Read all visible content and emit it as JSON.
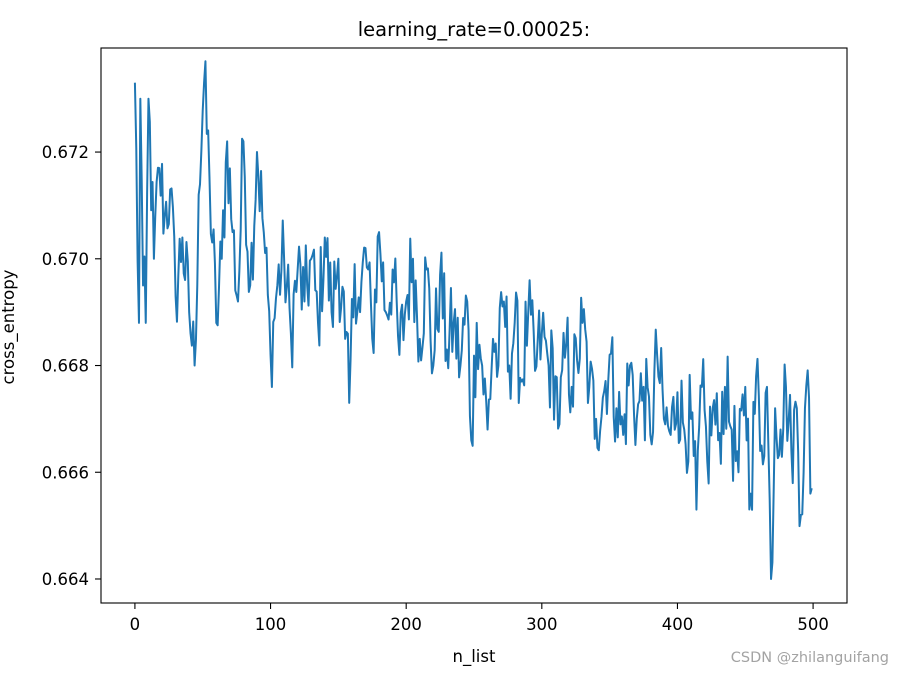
{
  "watermark": "CSDN @zhilanguifang",
  "chart_data": {
    "type": "line",
    "title": "learning_rate=0.00025:",
    "xlabel": "n_list",
    "ylabel": "cross_entropy",
    "xlim": [
      -25,
      525
    ],
    "ylim": [
      0.66355,
      0.67395
    ],
    "xticks": [
      0,
      100,
      200,
      300,
      400,
      500
    ],
    "yticks": [
      0.664,
      0.666,
      0.668,
      0.67,
      0.672
    ],
    "xtick_labels": [
      "0",
      "100",
      "200",
      "300",
      "400",
      "500"
    ],
    "ytick_labels": [
      "0.664",
      "0.666",
      "0.668",
      "0.670",
      "0.672"
    ],
    "grid": false,
    "series": [
      {
        "color": "#1f77b4",
        "x_start": 0,
        "x_step": 1,
        "anchors": [
          [
            0,
            0.6733
          ],
          [
            3,
            0.6688
          ],
          [
            4,
            0.673
          ],
          [
            6,
            0.6695
          ],
          [
            8,
            0.6688
          ],
          [
            10,
            0.673
          ],
          [
            14,
            0.67
          ],
          [
            18,
            0.6717
          ],
          [
            22,
            0.6708
          ],
          [
            26,
            0.6713
          ],
          [
            30,
            0.6693
          ],
          [
            35,
            0.6704
          ],
          [
            40,
            0.669
          ],
          [
            44,
            0.668
          ],
          [
            47,
            0.6712
          ],
          [
            51,
            0.6733
          ],
          [
            55,
            0.6715
          ],
          [
            60,
            0.6688
          ],
          [
            64,
            0.67
          ],
          [
            68,
            0.6722
          ],
          [
            72,
            0.6705
          ],
          [
            76,
            0.6692
          ],
          [
            80,
            0.6722
          ],
          [
            85,
            0.6695
          ],
          [
            90,
            0.672
          ],
          [
            95,
            0.6705
          ],
          [
            100,
            0.6682
          ],
          [
            105,
            0.6695
          ],
          [
            110,
            0.67
          ],
          [
            115,
            0.6686
          ],
          [
            120,
            0.6698
          ],
          [
            125,
            0.6692
          ],
          [
            130,
            0.67
          ],
          [
            135,
            0.6688
          ],
          [
            140,
            0.6704
          ],
          [
            145,
            0.669
          ],
          [
            150,
            0.67
          ],
          [
            155,
            0.6685
          ],
          [
            158,
            0.6673
          ],
          [
            162,
            0.6699
          ],
          [
            166,
            0.669
          ],
          [
            170,
            0.6702
          ],
          [
            175,
            0.6685
          ],
          [
            180,
            0.6705
          ],
          [
            185,
            0.669
          ],
          [
            190,
            0.6698
          ],
          [
            195,
            0.6682
          ],
          [
            200,
            0.6692
          ],
          [
            205,
            0.67
          ],
          [
            210,
            0.6685
          ],
          [
            215,
            0.6698
          ],
          [
            220,
            0.668
          ],
          [
            225,
            0.6697
          ],
          [
            230,
            0.6683
          ],
          [
            235,
            0.6688
          ],
          [
            240,
            0.668
          ],
          [
            245,
            0.6692
          ],
          [
            248,
            0.6666
          ],
          [
            252,
            0.6688
          ],
          [
            256,
            0.668
          ],
          [
            260,
            0.6668
          ],
          [
            264,
            0.6685
          ],
          [
            268,
            0.668
          ],
          [
            272,
            0.6692
          ],
          [
            276,
            0.668
          ],
          [
            280,
            0.6688
          ],
          [
            285,
            0.6677
          ],
          [
            290,
            0.669
          ],
          [
            295,
            0.6679
          ],
          [
            300,
            0.6686
          ],
          [
            305,
            0.668
          ],
          [
            310,
            0.6678
          ],
          [
            313,
            0.6669
          ],
          [
            318,
            0.6684
          ],
          [
            322,
            0.6676
          ],
          [
            326,
            0.6681
          ],
          [
            330,
            0.6688
          ],
          [
            335,
            0.6676
          ],
          [
            340,
            0.667
          ],
          [
            345,
            0.6674
          ],
          [
            350,
            0.6682
          ],
          [
            355,
            0.6672
          ],
          [
            360,
            0.6667
          ],
          [
            365,
            0.668
          ],
          [
            370,
            0.667
          ],
          [
            375,
            0.6676
          ],
          [
            380,
            0.6667
          ],
          [
            385,
            0.6682
          ],
          [
            390,
            0.667
          ],
          [
            395,
            0.6667
          ],
          [
            400,
            0.6675
          ],
          [
            405,
            0.6668
          ],
          [
            410,
            0.667
          ],
          [
            414,
            0.6653
          ],
          [
            418,
            0.6676
          ],
          [
            422,
            0.6662
          ],
          [
            426,
            0.6672
          ],
          [
            430,
            0.6666
          ],
          [
            435,
            0.6676
          ],
          [
            440,
            0.6668
          ],
          [
            445,
            0.666
          ],
          [
            450,
            0.6676
          ],
          [
            454,
            0.6656
          ],
          [
            458,
            0.6678
          ],
          [
            462,
            0.6665
          ],
          [
            466,
            0.6676
          ],
          [
            469,
            0.664
          ],
          [
            472,
            0.6672
          ],
          [
            476,
            0.6668
          ],
          [
            480,
            0.6676
          ],
          [
            484,
            0.6664
          ],
          [
            488,
            0.6672
          ],
          [
            491,
            0.6652
          ],
          [
            494,
            0.6672
          ],
          [
            497,
            0.6674
          ],
          [
            498,
            0.6656
          ],
          [
            499,
            0.6657
          ]
        ]
      }
    ]
  }
}
